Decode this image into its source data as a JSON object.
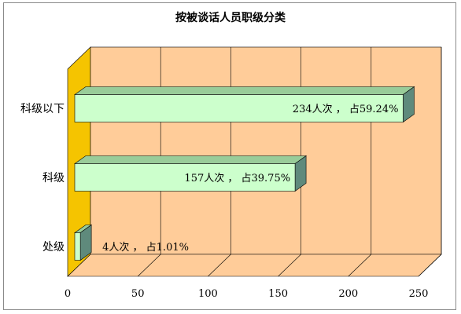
{
  "chart_data": {
    "type": "bar",
    "orientation": "horizontal",
    "style": "3d",
    "title": "按被谈话人员职级分类",
    "xlabel": "",
    "ylabel": "",
    "xlim": [
      0,
      250
    ],
    "xticks": [
      0,
      50,
      100,
      150,
      200,
      250
    ],
    "grid": true,
    "categories": [
      "科级以下",
      "科级",
      "处级"
    ],
    "values": [
      234,
      157,
      4
    ],
    "data_labels": [
      "234人次 ，  占59.24%",
      "157人次 ，  占39.75%",
      "4人次 ，  占1.01%"
    ],
    "colors": {
      "bar_front": "#ccffcc",
      "bar_top": "#99cc99",
      "bar_side": "#5f8a7c",
      "wall": "#ffcc99",
      "floor": "#ffcc99",
      "side_wall": "#f5c400"
    }
  }
}
